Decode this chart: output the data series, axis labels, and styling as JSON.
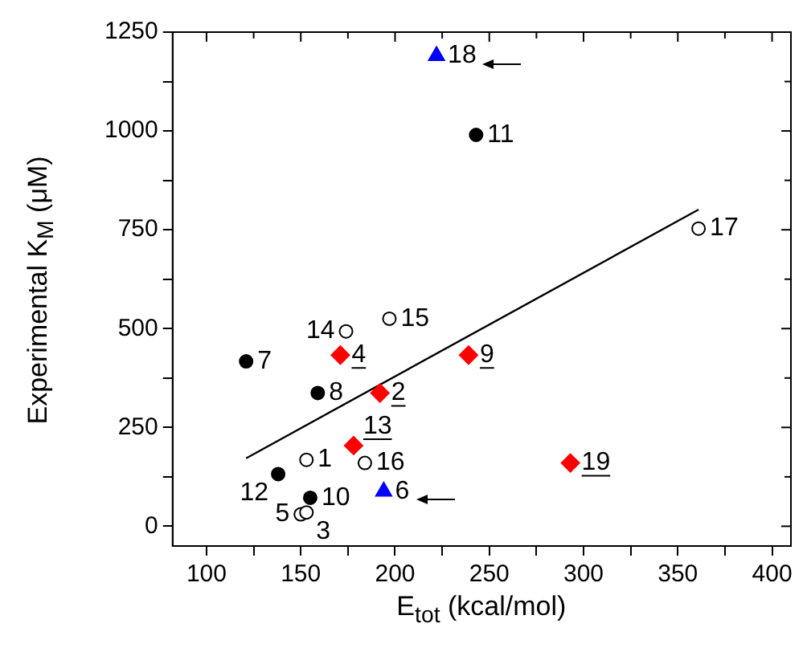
{
  "chart_data": {
    "type": "scatter",
    "xlabel": "E$_{tot}$ (kcal/mol)",
    "ylabel": "Experimental K$_{M}$ (μM)",
    "xlim": [
      82,
      410
    ],
    "ylim": [
      -50,
      1250
    ],
    "xticks": [
      100,
      {
        "value": 125,
        "label": null
      },
      150,
      {
        "value": 175,
        "label": null
      },
      200,
      {
        "value": 225,
        "label": null
      },
      250,
      {
        "value": 275,
        "label": null
      },
      300,
      {
        "value": 325,
        "label": null
      },
      350,
      {
        "value": 375,
        "label": null
      },
      400
    ],
    "yticks": [
      0,
      {
        "value": 125,
        "label": null
      },
      250,
      {
        "value": 375,
        "label": null
      },
      500,
      {
        "value": 625,
        "label": null
      },
      750,
      {
        "value": 875,
        "label": null
      },
      1000,
      {
        "value": 1125,
        "label": null
      },
      1250
    ],
    "grid": false,
    "legend": false,
    "series": [
      {
        "marker": "circle",
        "color": "#000000",
        "x": [
          121,
          159,
          138,
          155,
          243
        ],
        "values": [
          417,
          337,
          132,
          72,
          990
        ]
      },
      {
        "marker": "circle",
        "color": "#ffffff",
        "x": [
          153,
          174,
          197,
          184,
          150,
          153,
          361
        ],
        "values": [
          168,
          493,
          525,
          160,
          30,
          35,
          753
        ]
      },
      {
        "marker": "diamond",
        "color": "#ff0000",
        "x": [
          171,
          192,
          178,
          239,
          293
        ],
        "values": [
          433,
          337,
          204,
          433,
          160
        ]
      },
      {
        "marker": "triangle",
        "color": "#0000ff",
        "x": [
          222,
          194
        ],
        "values": [
          1190,
          88
        ]
      },
      {
        "type": "line",
        "marker": "none",
        "color": "#000000",
        "x": [
          121,
          361
        ],
        "values": [
          172,
          801
        ]
      }
    ],
    "annotations": [
      {
        "text": "7",
        "x": 121,
        "y": 417
      },
      {
        "text": "8",
        "x": 159,
        "y": 337
      },
      {
        "text": "12",
        "x": 138,
        "y": 132
      },
      {
        "text": "10",
        "x": 155,
        "y": 72
      },
      {
        "text": "11",
        "x": 243,
        "y": 990
      },
      {
        "text": "1",
        "x": 153,
        "y": 168
      },
      {
        "text": "14",
        "x": 174,
        "y": 493
      },
      {
        "text": "15",
        "x": 197,
        "y": 525
      },
      {
        "text": "16",
        "x": 184,
        "y": 160
      },
      {
        "text": "5",
        "x": 150,
        "y": 30
      },
      {
        "text": "3",
        "x": 153,
        "y": 35
      },
      {
        "text": "17",
        "x": 361,
        "y": 753
      },
      {
        "text": "4",
        "x": 171,
        "y": 433
      },
      {
        "text": "2",
        "x": 192,
        "y": 337
      },
      {
        "text": "13",
        "x": 178,
        "y": 204
      },
      {
        "text": "9",
        "x": 239,
        "y": 433
      },
      {
        "text": "19",
        "x": 293,
        "y": 160
      },
      {
        "text": "18",
        "x": 222,
        "y": 1190
      },
      {
        "text": "6",
        "x": 194,
        "y": 88
      }
    ]
  }
}
